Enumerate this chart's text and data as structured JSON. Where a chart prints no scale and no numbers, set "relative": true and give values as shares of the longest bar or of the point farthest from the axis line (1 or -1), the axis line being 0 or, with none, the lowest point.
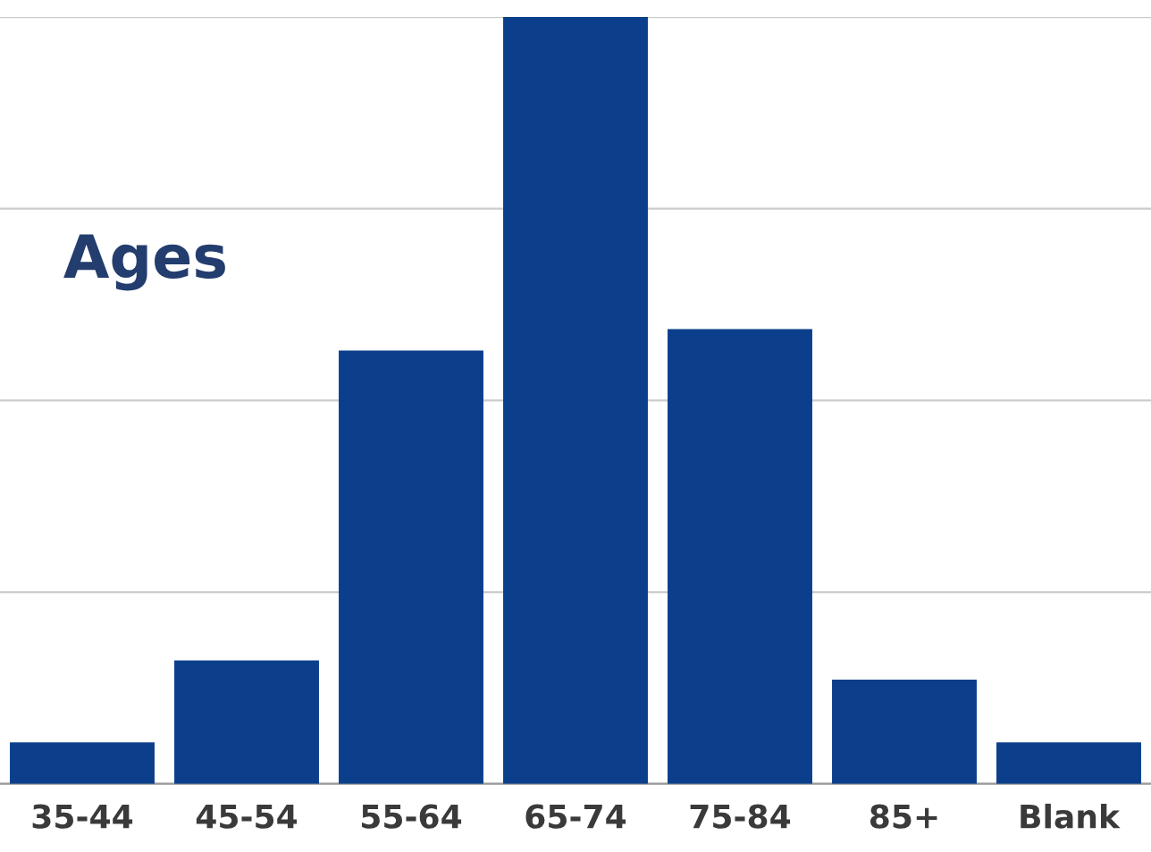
{
  "chart_data": {
    "type": "bar",
    "title": "Ages",
    "categories": [
      "35-44",
      "45-54",
      "55-64",
      "65-74",
      "75-84",
      "85+",
      "Blank"
    ],
    "values": [
      0.054,
      0.161,
      0.565,
      1.0,
      0.593,
      0.136,
      0.054
    ],
    "color": "#0b3f8c",
    "relative": true,
    "grid": "y",
    "legend": false
  }
}
